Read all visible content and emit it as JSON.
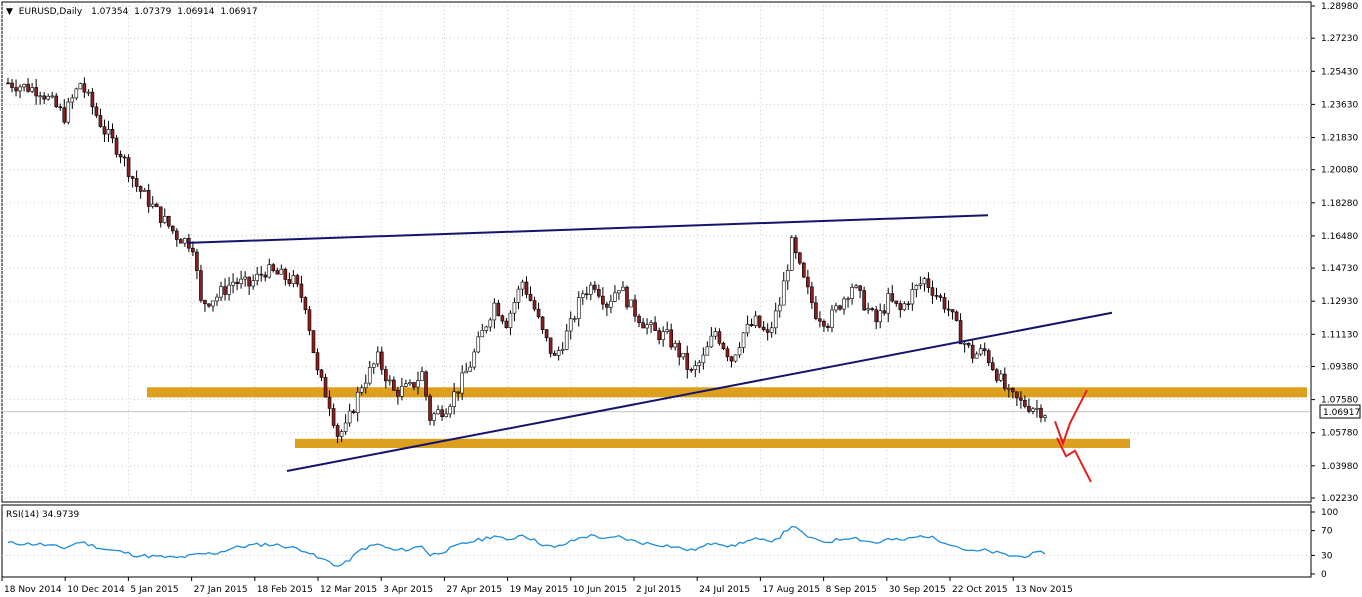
{
  "header": {
    "arrow": "▼",
    "symbol": "EURUSD,Daily",
    "open": "1.07354",
    "high": "1.07379",
    "low": "1.06914",
    "close": "1.06917"
  },
  "current_price_tag": "1.06917",
  "rsi": {
    "label": "RSI(14) 34.9739",
    "levels": [
      "100",
      "70",
      "30",
      "0"
    ]
  },
  "colors": {
    "bull": "#ffffff",
    "bear": "#8b1e1e",
    "wick": "#000000",
    "trendline": "#14146e",
    "zone": "#dca01e",
    "forecast": "#e61e1e",
    "rsi_line": "#1e8cdc",
    "grid": "#c8c8c8"
  },
  "chart_data": [
    {
      "type": "candlestick",
      "title": "EURUSD,Daily",
      "y_ticks": [
        "1.28980",
        "1.27230",
        "1.25430",
        "1.23630",
        "1.21830",
        "1.20080",
        "1.18280",
        "1.16480",
        "1.14730",
        "1.12930",
        "1.11130",
        "1.09380",
        "1.07580",
        "1.05780",
        "1.03980",
        "1.02230"
      ],
      "ylim": [
        1.0223,
        1.2898
      ],
      "x_ticks": [
        "18 Nov 2014",
        "10 Dec 2014",
        "5 Jan 2015",
        "27 Jan 2015",
        "18 Feb 2015",
        "12 Mar 2015",
        "3 Apr 2015",
        "27 Apr 2015",
        "19 May 2015",
        "10 Jun 2015",
        "2 Jul 2015",
        "24 Jul 2015",
        "17 Aug 2015",
        "8 Sep 2015",
        "30 Sep 2015",
        "22 Oct 2015",
        "13 Nov 2015"
      ],
      "grid": true,
      "close_path": [
        [
          0,
          1.248
        ],
        [
          8,
          1.244
        ],
        [
          14,
          1.23
        ],
        [
          18,
          1.248
        ],
        [
          24,
          1.222
        ],
        [
          28,
          1.21
        ],
        [
          32,
          1.192
        ],
        [
          37,
          1.178
        ],
        [
          42,
          1.165
        ],
        [
          46,
          1.16
        ],
        [
          48,
          1.128
        ],
        [
          52,
          1.132
        ],
        [
          56,
          1.14
        ],
        [
          60,
          1.138
        ],
        [
          64,
          1.146
        ],
        [
          68,
          1.143
        ],
        [
          71,
          1.14
        ],
        [
          74,
          1.128
        ],
        [
          77,
          1.09
        ],
        [
          80,
          1.074
        ],
        [
          82,
          1.057
        ],
        [
          84,
          1.06
        ],
        [
          88,
          1.084
        ],
        [
          92,
          1.098
        ],
        [
          96,
          1.08
        ],
        [
          100,
          1.082
        ],
        [
          103,
          1.09
        ],
        [
          105,
          1.066
        ],
        [
          109,
          1.072
        ],
        [
          112,
          1.082
        ],
        [
          115,
          1.095
        ],
        [
          118,
          1.112
        ],
        [
          121,
          1.128
        ],
        [
          124,
          1.118
        ],
        [
          128,
          1.14
        ],
        [
          131,
          1.125
        ],
        [
          133,
          1.112
        ],
        [
          136,
          1.098
        ],
        [
          140,
          1.116
        ],
        [
          143,
          1.134
        ],
        [
          146,
          1.139
        ],
        [
          149,
          1.128
        ],
        [
          152,
          1.138
        ],
        [
          155,
          1.126
        ],
        [
          158,
          1.118
        ],
        [
          161,
          1.112
        ],
        [
          164,
          1.11
        ],
        [
          167,
          1.101
        ],
        [
          170,
          1.09
        ],
        [
          173,
          1.098
        ],
        [
          176,
          1.113
        ],
        [
          180,
          1.098
        ],
        [
          183,
          1.112
        ],
        [
          186,
          1.118
        ],
        [
          189,
          1.11
        ],
        [
          192,
          1.128
        ],
        [
          195,
          1.16
        ],
        [
          198,
          1.14
        ],
        [
          201,
          1.123
        ],
        [
          204,
          1.118
        ],
        [
          207,
          1.128
        ],
        [
          210,
          1.138
        ],
        [
          213,
          1.128
        ],
        [
          216,
          1.118
        ],
        [
          219,
          1.13
        ],
        [
          222,
          1.124
        ],
        [
          225,
          1.134
        ],
        [
          228,
          1.141
        ],
        [
          231,
          1.133
        ],
        [
          234,
          1.125
        ],
        [
          237,
          1.11
        ],
        [
          240,
          1.1
        ],
        [
          243,
          1.102
        ],
        [
          246,
          1.09
        ],
        [
          249,
          1.078
        ],
        [
          252,
          1.074
        ],
        [
          255,
          1.072
        ],
        [
          258,
          1.069
        ]
      ]
    },
    {
      "type": "line",
      "title": "RSI(14) 34.9739",
      "ylim": [
        0,
        100
      ],
      "y_ticks": [
        "100",
        "70",
        "30",
        "0"
      ],
      "path": [
        [
          0,
          50
        ],
        [
          8,
          48
        ],
        [
          14,
          42
        ],
        [
          18,
          52
        ],
        [
          24,
          40
        ],
        [
          28,
          36
        ],
        [
          32,
          30
        ],
        [
          37,
          28
        ],
        [
          42,
          26
        ],
        [
          46,
          30
        ],
        [
          48,
          32
        ],
        [
          52,
          34
        ],
        [
          56,
          42
        ],
        [
          60,
          46
        ],
        [
          64,
          48
        ],
        [
          68,
          46
        ],
        [
          71,
          42
        ],
        [
          74,
          38
        ],
        [
          77,
          26
        ],
        [
          80,
          20
        ],
        [
          82,
          12
        ],
        [
          84,
          18
        ],
        [
          88,
          40
        ],
        [
          92,
          48
        ],
        [
          96,
          38
        ],
        [
          100,
          40
        ],
        [
          103,
          46
        ],
        [
          105,
          30
        ],
        [
          109,
          38
        ],
        [
          112,
          46
        ],
        [
          115,
          52
        ],
        [
          118,
          56
        ],
        [
          121,
          62
        ],
        [
          124,
          54
        ],
        [
          128,
          64
        ],
        [
          131,
          54
        ],
        [
          133,
          48
        ],
        [
          136,
          42
        ],
        [
          140,
          52
        ],
        [
          143,
          60
        ],
        [
          146,
          62
        ],
        [
          149,
          56
        ],
        [
          152,
          60
        ],
        [
          155,
          54
        ],
        [
          158,
          50
        ],
        [
          161,
          48
        ],
        [
          164,
          46
        ],
        [
          167,
          42
        ],
        [
          170,
          38
        ],
        [
          173,
          44
        ],
        [
          176,
          52
        ],
        [
          180,
          44
        ],
        [
          183,
          52
        ],
        [
          186,
          56
        ],
        [
          189,
          52
        ],
        [
          192,
          60
        ],
        [
          195,
          78
        ],
        [
          198,
          64
        ],
        [
          201,
          54
        ],
        [
          204,
          52
        ],
        [
          207,
          56
        ],
        [
          210,
          60
        ],
        [
          213,
          54
        ],
        [
          216,
          50
        ],
        [
          219,
          56
        ],
        [
          222,
          54
        ],
        [
          225,
          58
        ],
        [
          228,
          62
        ],
        [
          231,
          56
        ],
        [
          234,
          50
        ],
        [
          237,
          42
        ],
        [
          240,
          36
        ],
        [
          243,
          38
        ],
        [
          246,
          34
        ],
        [
          249,
          30
        ],
        [
          252,
          28
        ],
        [
          255,
          32
        ],
        [
          258,
          35
        ]
      ]
    }
  ]
}
